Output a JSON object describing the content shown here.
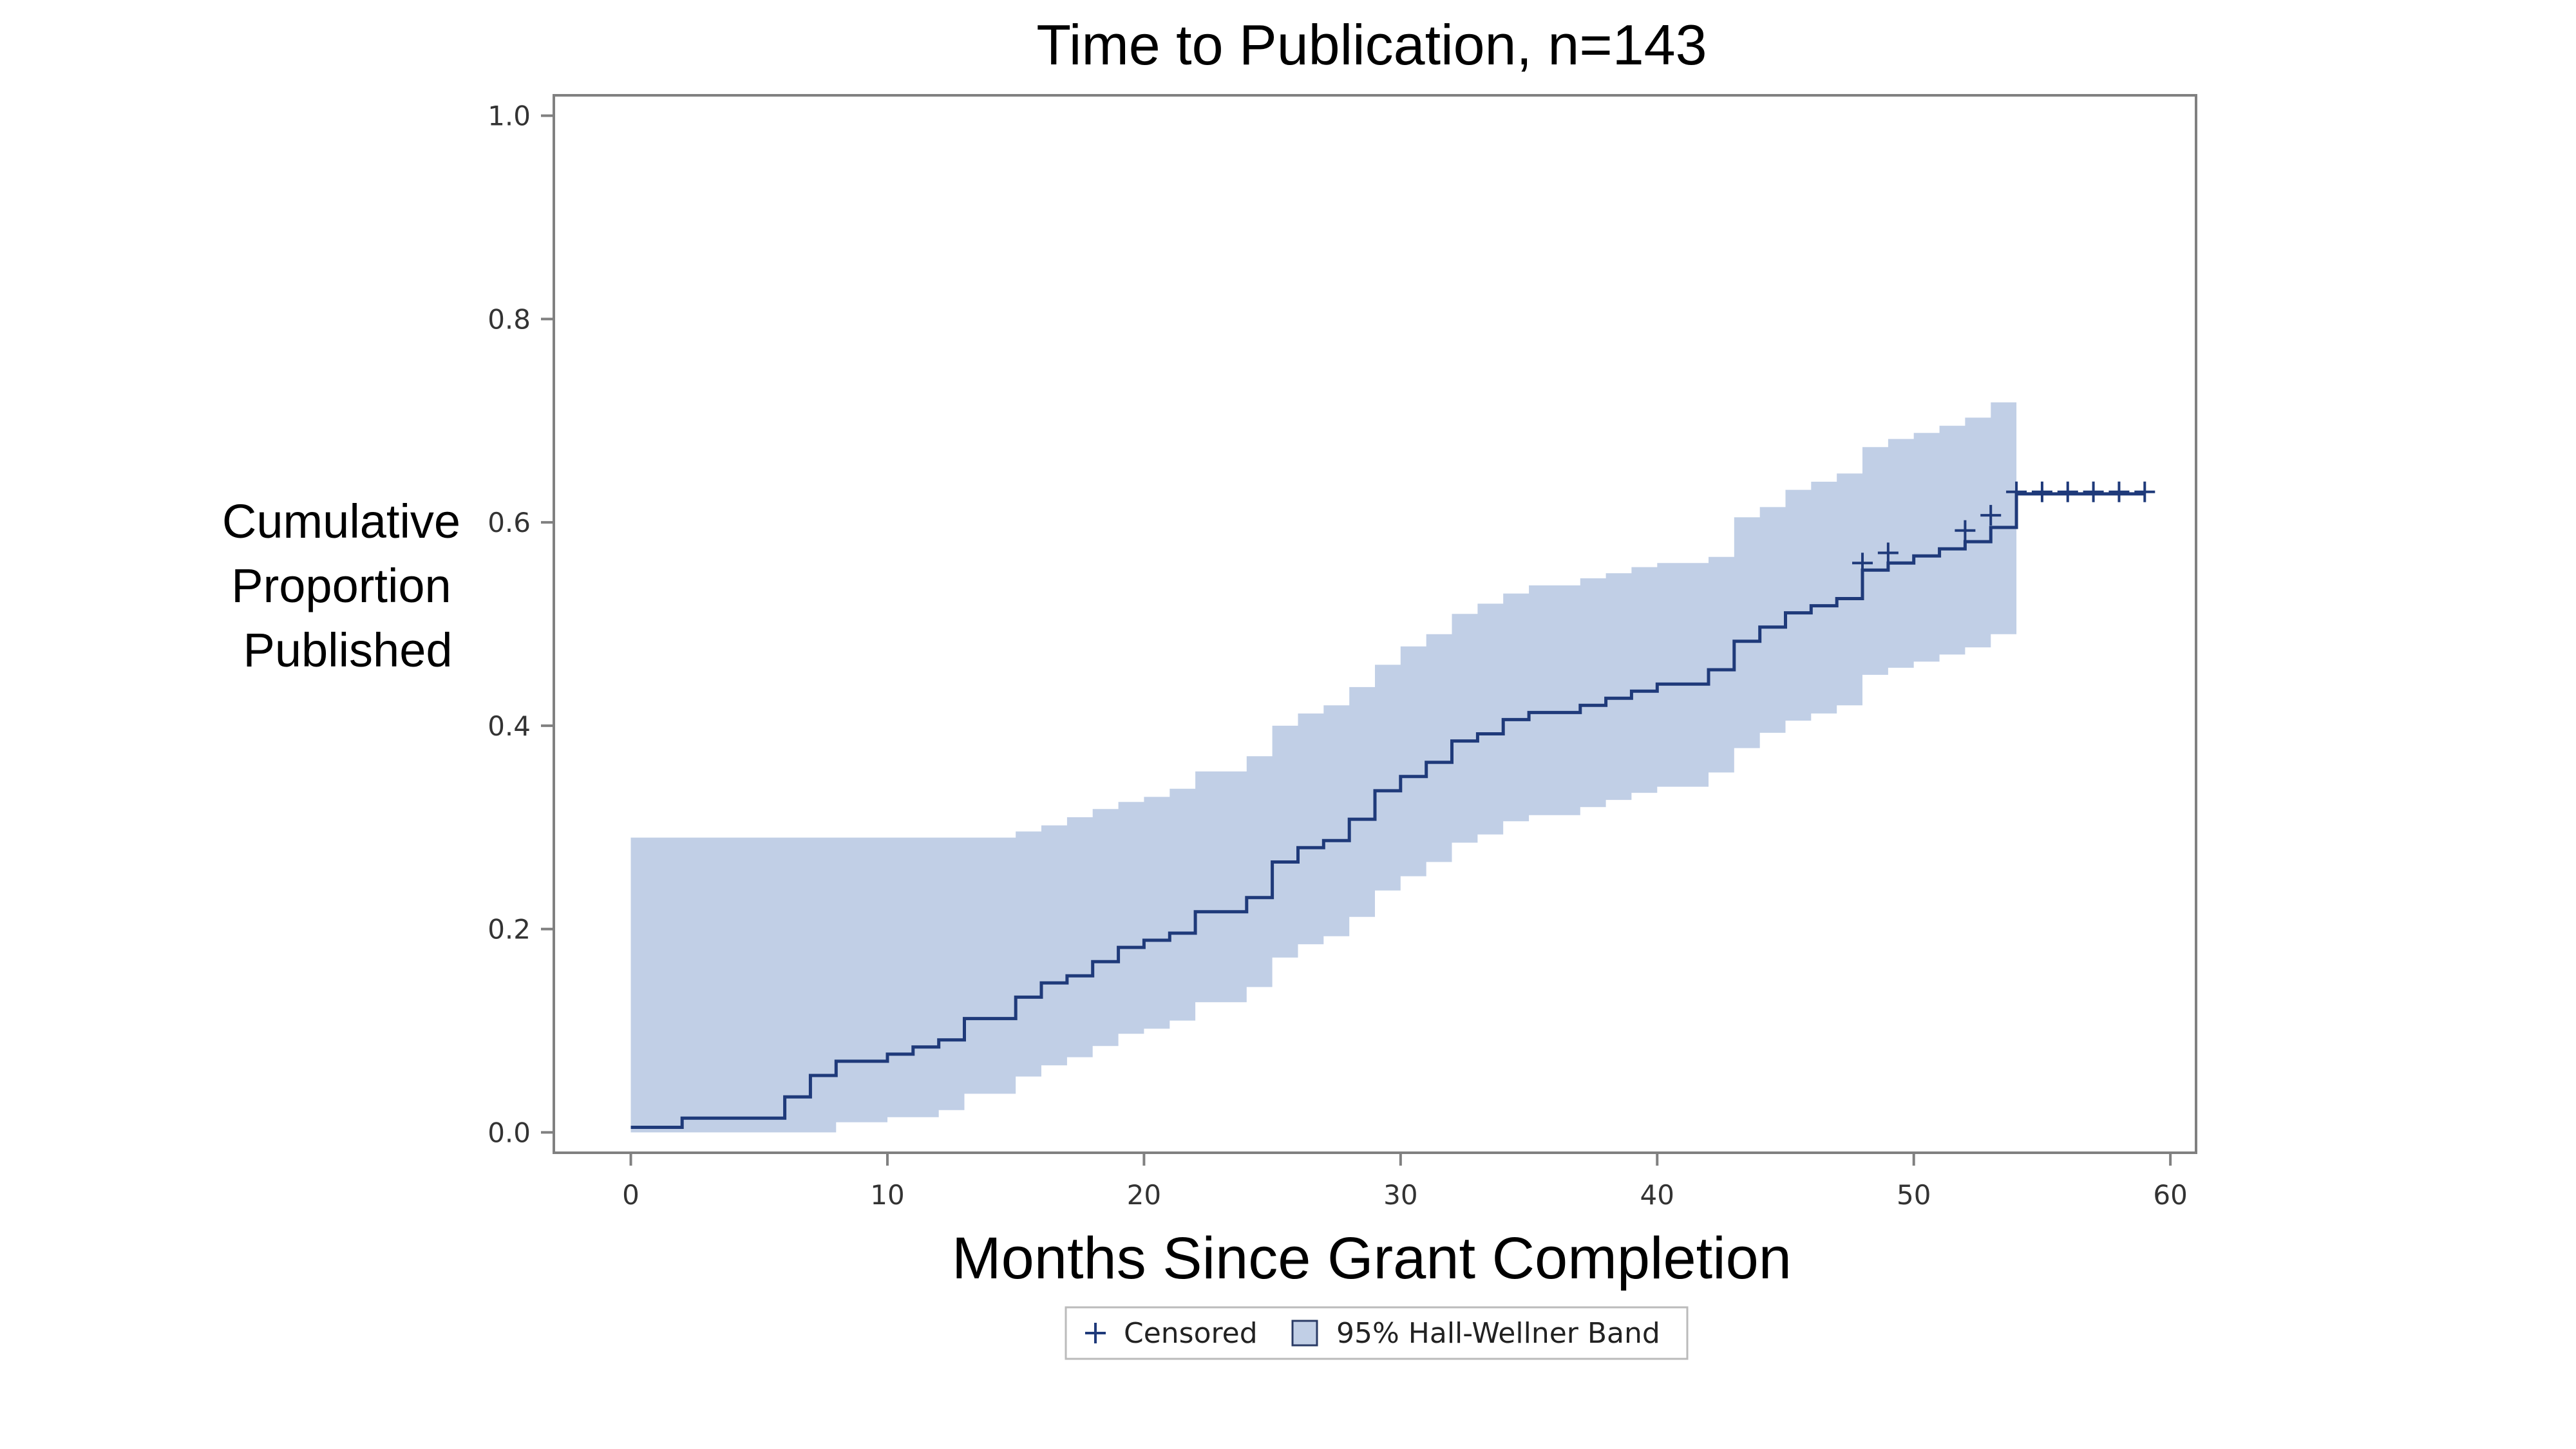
{
  "chart_data": {
    "type": "line",
    "title": "Time to Publication, n=143",
    "xlabel": "Months Since Grant Completion",
    "ylabel_lines": [
      "Cumulative",
      "Proportion",
      "Published"
    ],
    "xlim": [
      -3,
      61
    ],
    "ylim": [
      -0.02,
      1.02
    ],
    "xticks": [
      0,
      10,
      20,
      30,
      40,
      50,
      60
    ],
    "yticks": [
      "0.0",
      "0.2",
      "0.4",
      "0.6",
      "0.8",
      "1.0"
    ],
    "grid": false,
    "legend_placement": "bottom-center",
    "colors": {
      "line": "#1f3a7a",
      "band": "#c1cfe6",
      "axis": "#808080"
    },
    "series": [
      {
        "name": "Cumulative Proportion Published",
        "steps": [
          [
            0,
            0.005
          ],
          [
            2,
            0.014
          ],
          [
            6,
            0.035
          ],
          [
            7,
            0.056
          ],
          [
            8,
            0.07
          ],
          [
            10,
            0.077
          ],
          [
            11,
            0.084
          ],
          [
            12,
            0.091
          ],
          [
            13,
            0.112
          ],
          [
            15,
            0.133
          ],
          [
            16,
            0.147
          ],
          [
            17,
            0.154
          ],
          [
            18,
            0.168
          ],
          [
            19,
            0.182
          ],
          [
            20,
            0.189
          ],
          [
            21,
            0.196
          ],
          [
            22,
            0.217
          ],
          [
            24,
            0.231
          ],
          [
            25,
            0.266
          ],
          [
            26,
            0.28
          ],
          [
            27,
            0.287
          ],
          [
            28,
            0.308
          ],
          [
            29,
            0.336
          ],
          [
            30,
            0.35
          ],
          [
            31,
            0.364
          ],
          [
            32,
            0.385
          ],
          [
            33,
            0.392
          ],
          [
            34,
            0.406
          ],
          [
            35,
            0.413
          ],
          [
            37,
            0.42
          ],
          [
            38,
            0.427
          ],
          [
            39,
            0.434
          ],
          [
            40,
            0.441
          ],
          [
            42,
            0.455
          ],
          [
            43,
            0.483
          ],
          [
            44,
            0.497
          ],
          [
            45,
            0.511
          ],
          [
            46,
            0.518
          ],
          [
            47,
            0.525
          ],
          [
            48,
            0.553
          ],
          [
            49,
            0.56
          ],
          [
            50,
            0.567
          ],
          [
            51,
            0.574
          ],
          [
            52,
            0.581
          ],
          [
            53,
            0.595
          ],
          [
            54,
            0.609
          ],
          [
            54,
            0.628
          ],
          [
            59,
            0.628
          ]
        ]
      },
      {
        "name": "95% Hall-Wellner Band",
        "band": [
          [
            0,
            0.0,
            0.29
          ],
          [
            7,
            0.0,
            0.29
          ],
          [
            8,
            0.01,
            0.29
          ],
          [
            10,
            0.015,
            0.29
          ],
          [
            12,
            0.022,
            0.29
          ],
          [
            13,
            0.038,
            0.29
          ],
          [
            15,
            0.055,
            0.296
          ],
          [
            16,
            0.066,
            0.302
          ],
          [
            17,
            0.074,
            0.31
          ],
          [
            18,
            0.085,
            0.318
          ],
          [
            19,
            0.097,
            0.325
          ],
          [
            20,
            0.102,
            0.33
          ],
          [
            21,
            0.11,
            0.338
          ],
          [
            22,
            0.128,
            0.355
          ],
          [
            24,
            0.143,
            0.37
          ],
          [
            25,
            0.172,
            0.4
          ],
          [
            26,
            0.185,
            0.412
          ],
          [
            27,
            0.193,
            0.42
          ],
          [
            28,
            0.212,
            0.438
          ],
          [
            29,
            0.238,
            0.46
          ],
          [
            30,
            0.252,
            0.478
          ],
          [
            31,
            0.266,
            0.49
          ],
          [
            32,
            0.285,
            0.51
          ],
          [
            33,
            0.293,
            0.52
          ],
          [
            34,
            0.306,
            0.53
          ],
          [
            35,
            0.312,
            0.538
          ],
          [
            37,
            0.32,
            0.545
          ],
          [
            38,
            0.327,
            0.55
          ],
          [
            39,
            0.334,
            0.556
          ],
          [
            40,
            0.34,
            0.56
          ],
          [
            42,
            0.354,
            0.566
          ],
          [
            43,
            0.378,
            0.605
          ],
          [
            44,
            0.393,
            0.615
          ],
          [
            45,
            0.405,
            0.632
          ],
          [
            46,
            0.412,
            0.64
          ],
          [
            47,
            0.42,
            0.648
          ],
          [
            48,
            0.45,
            0.674
          ],
          [
            49,
            0.457,
            0.682
          ],
          [
            50,
            0.463,
            0.688
          ],
          [
            51,
            0.47,
            0.695
          ],
          [
            52,
            0.477,
            0.703
          ],
          [
            53,
            0.49,
            0.718
          ],
          [
            54,
            0.497,
            0.718
          ]
        ],
        "band_end": 54
      },
      {
        "name": "Censored",
        "points": [
          [
            48,
            0.56
          ],
          [
            49,
            0.57
          ],
          [
            52,
            0.592
          ],
          [
            53,
            0.607
          ],
          [
            54,
            0.63
          ],
          [
            55,
            0.63
          ],
          [
            56,
            0.63
          ],
          [
            57,
            0.63
          ],
          [
            58,
            0.63
          ],
          [
            59,
            0.63
          ]
        ]
      }
    ],
    "legend": [
      {
        "symbol": "+",
        "label": "Censored"
      },
      {
        "symbol": "box",
        "label": "95% Hall-Wellner Band"
      }
    ]
  }
}
